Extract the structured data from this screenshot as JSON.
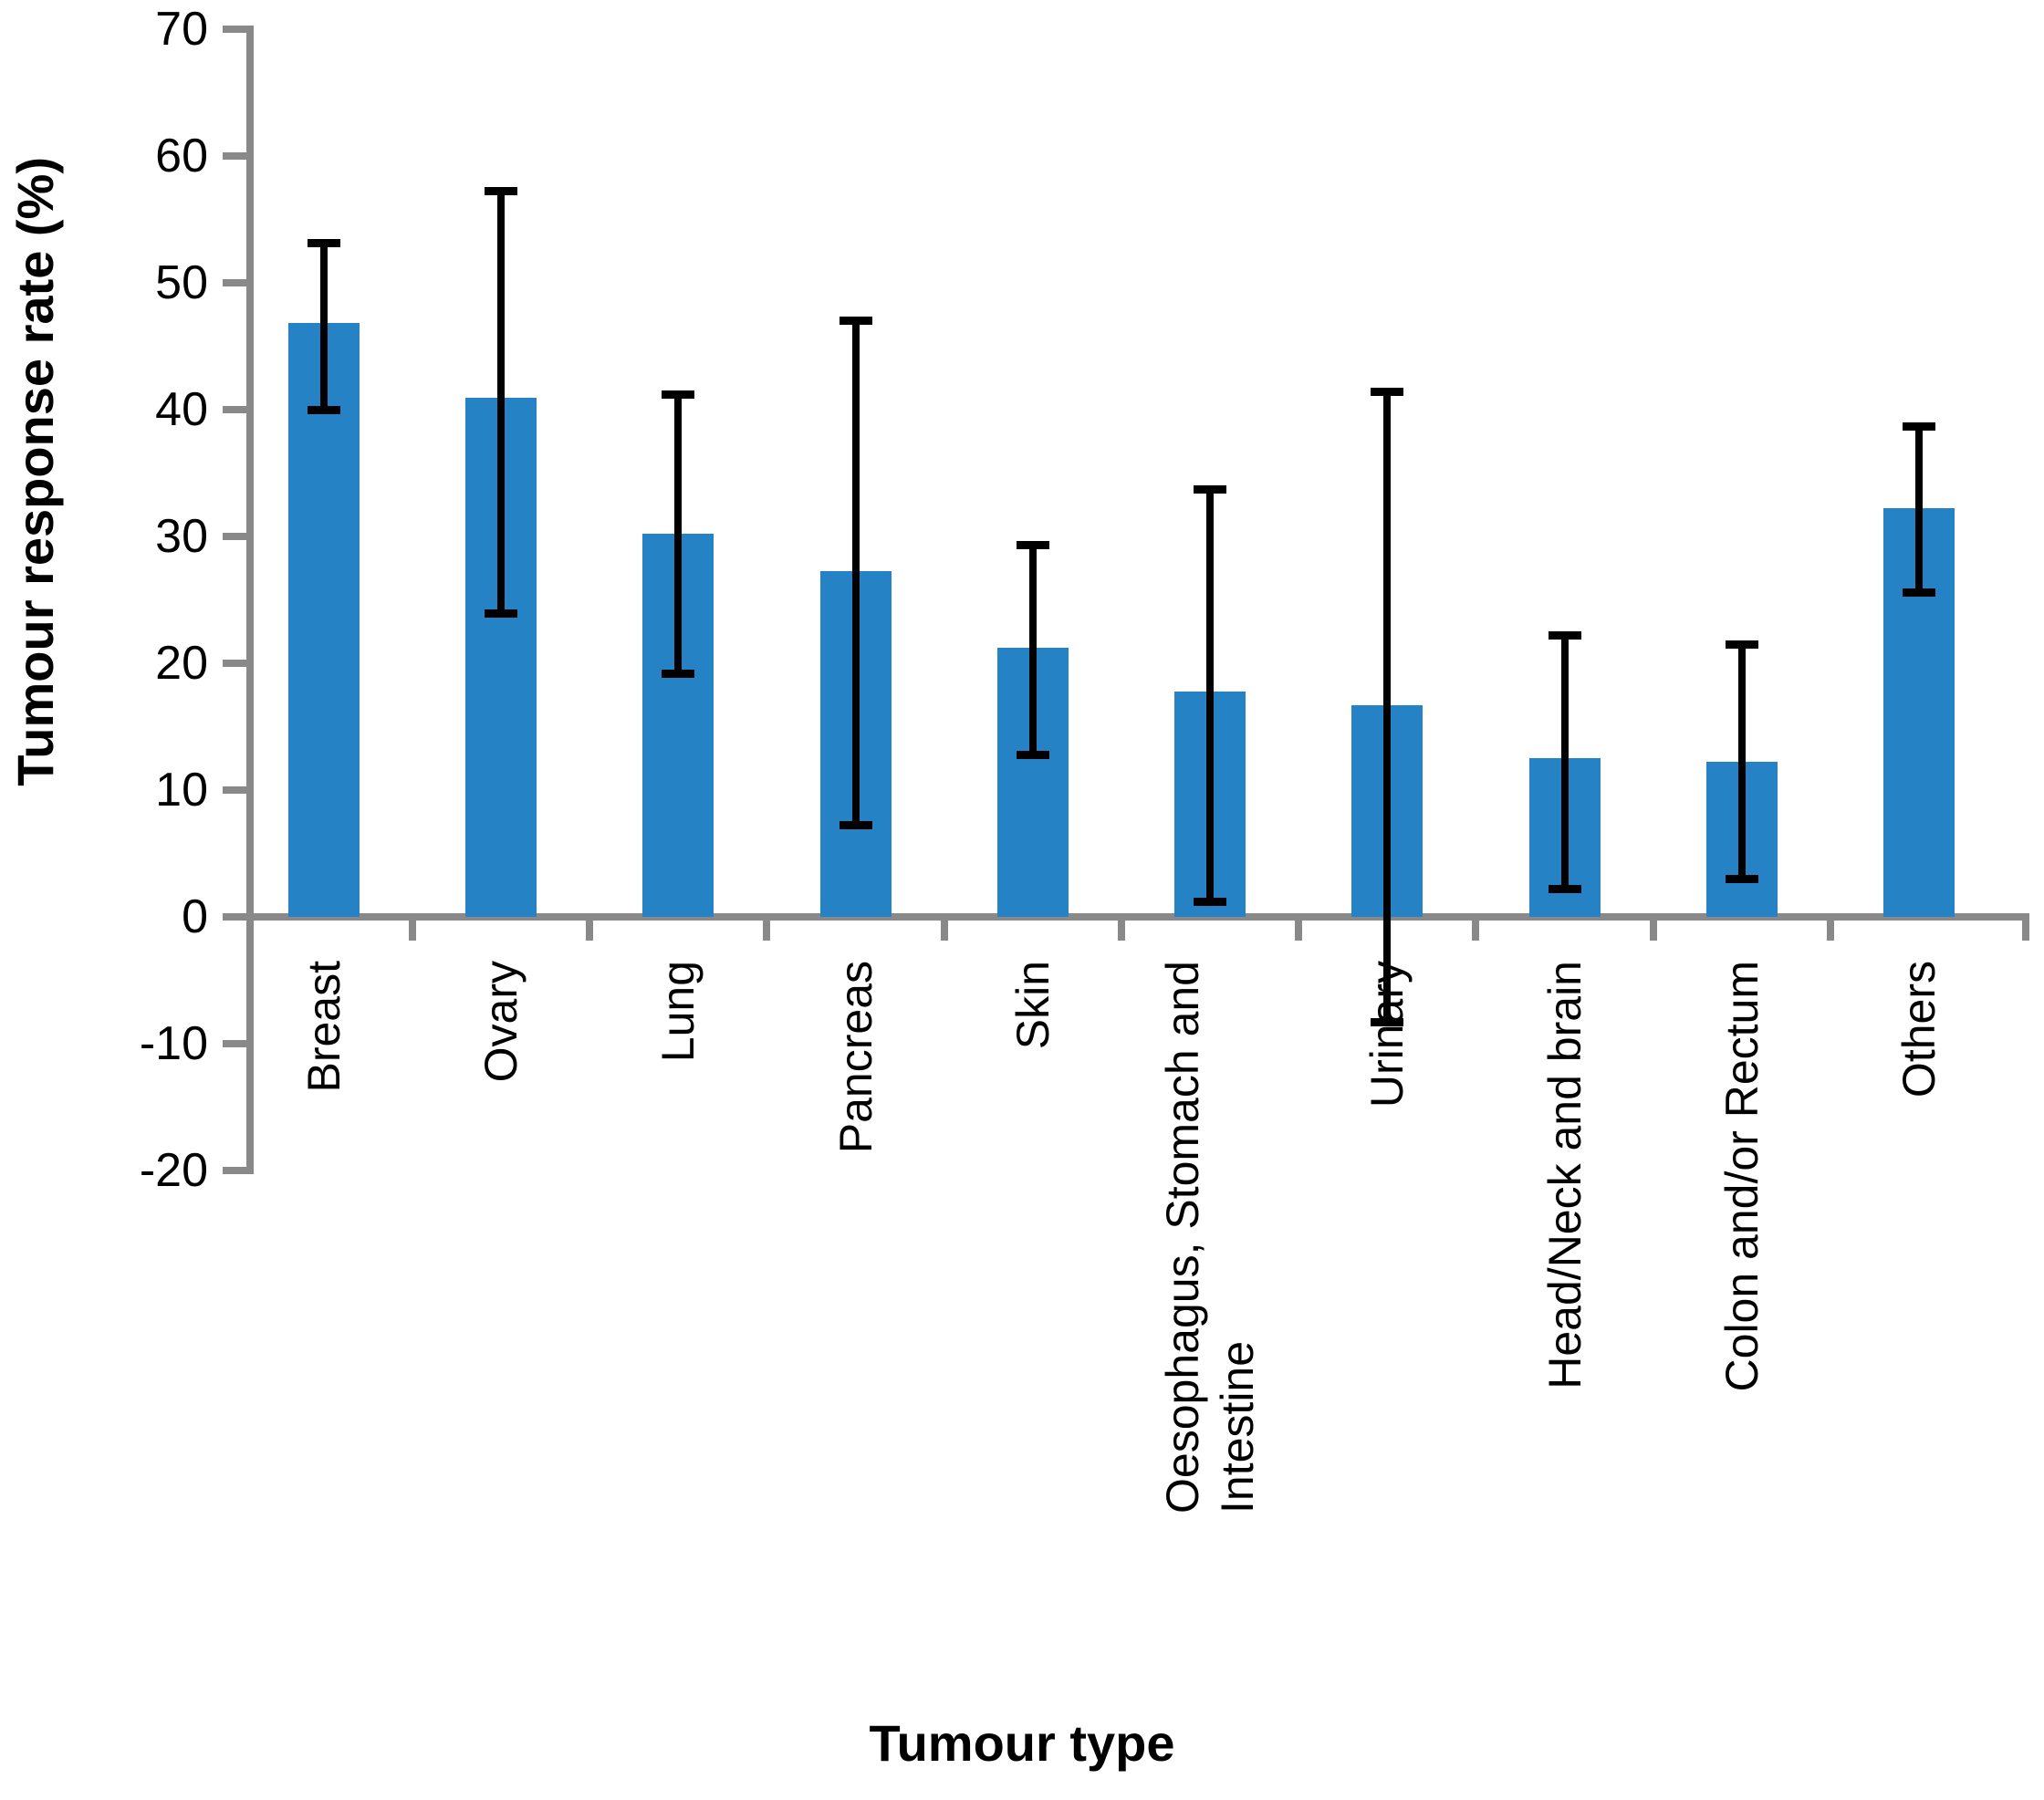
{
  "chart_data": {
    "type": "bar",
    "title": "",
    "xlabel": "Tumour type",
    "ylabel": "Tumour response rate (%)",
    "ylim": [
      -20,
      70
    ],
    "yticks": [
      70,
      60,
      50,
      40,
      30,
      20,
      10,
      0,
      -10,
      -20
    ],
    "grid": false,
    "legend": "none",
    "categories": [
      "Breast",
      "Ovary",
      "Lung",
      "Pancreas",
      "Skin",
      "Oesophagus, Stomach and\nIntestine",
      "Urinary",
      "Head/Neck and brain",
      "Colon and/or Rectum",
      "Others"
    ],
    "values": [
      46.8,
      40.9,
      30.2,
      27.3,
      21.2,
      17.8,
      16.7,
      12.5,
      12.2,
      32.2
    ],
    "ci_low": [
      40.0,
      23.9,
      19.2,
      7.2,
      12.8,
      1.2,
      -8.3,
      2.2,
      3.0,
      25.6
    ],
    "ci_high": [
      53.1,
      57.2,
      41.2,
      47.0,
      29.3,
      33.7,
      41.4,
      22.2,
      21.5,
      38.7
    ],
    "colors": {
      "bar": "#2482C5",
      "axis": "#898989",
      "error_bar": "#000000",
      "text": "#000000"
    }
  }
}
